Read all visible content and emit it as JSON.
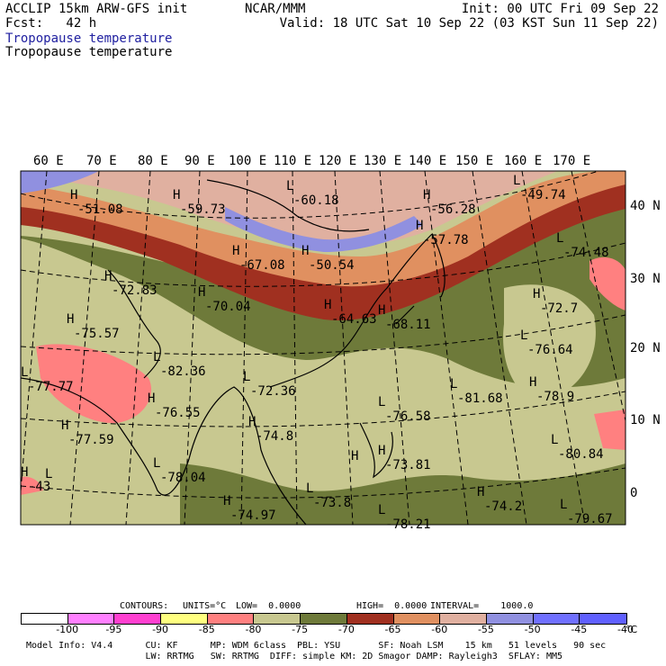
{
  "header": {
    "model_line": "ACCLIP 15km ARW-GFS init",
    "fcst_line": "Fcst:   42 h",
    "center": "NCAR/MMM",
    "init": "Init: 00 UTC Fri 09 Sep 22",
    "valid": "Valid: 18 UTC Sat 10 Sep 22 (03 KST Sun 11 Sep 22)",
    "field_colored": "Tropopause temperature",
    "field_black": "Tropopause temperature"
  },
  "map": {
    "lon_labels": [
      "60 E",
      "70 E",
      "80 E",
      "90 E",
      "100 E",
      "110 E",
      "120 E",
      "130 E",
      "140 E",
      "150 E",
      "160 E",
      "170 E"
    ],
    "lat_labels": [
      "40 N",
      "30 N",
      "20 N",
      "10 N",
      "0"
    ],
    "extrema": [
      {
        "type": "H",
        "value": "-51.08"
      },
      {
        "type": "H",
        "value": "-59.73"
      },
      {
        "type": "L",
        "value": "-60.18"
      },
      {
        "type": "H",
        "value": "-56.28"
      },
      {
        "type": "L",
        "value": "-49.74"
      },
      {
        "type": "H",
        "value": "-67.08"
      },
      {
        "type": "H",
        "value": "-50.54"
      },
      {
        "type": "H",
        "value": "-57.78"
      },
      {
        "type": "L",
        "value": "-74.48"
      },
      {
        "type": "H",
        "value": "-72.83"
      },
      {
        "type": "H",
        "value": "-70.04"
      },
      {
        "type": "H",
        "value": "-64.63"
      },
      {
        "type": "H",
        "value": "-68.11"
      },
      {
        "type": "H",
        "value": "-72.7"
      },
      {
        "type": "H",
        "value": "-75.57"
      },
      {
        "type": "L",
        "value": "-76.64"
      },
      {
        "type": "L",
        "value": "-82.36"
      },
      {
        "type": "L",
        "value": "-77.77"
      },
      {
        "type": "L",
        "value": "-72.36"
      },
      {
        "type": "L",
        "value": "-81.68"
      },
      {
        "type": "H",
        "value": "-78.9"
      },
      {
        "type": "H",
        "value": "-76.55"
      },
      {
        "type": "L",
        "value": "-76.58"
      },
      {
        "type": "H",
        "value": "-77.59"
      },
      {
        "type": "H",
        "value": "-74.8"
      },
      {
        "type": "L",
        "value": "-80.84"
      },
      {
        "type": "H",
        "value": "-73.81"
      },
      {
        "type": "L",
        "value": "-78.04"
      },
      {
        "type": "H",
        "value": "-74.2"
      },
      {
        "type": "L",
        "value": "-79.67"
      },
      {
        "type": "H",
        "value": "-43"
      },
      {
        "type": "L",
        "value": "-73.8"
      },
      {
        "type": "H",
        "value": "-74.97"
      },
      {
        "type": "L",
        "value": "-78.21"
      },
      {
        "type": "H",
        "value": ""
      },
      {
        "type": "L",
        "value": ""
      }
    ]
  },
  "contours": {
    "label": "CONTOURS:",
    "units": "UNITS=°C",
    "low": "LOW=  0.0000",
    "high": "HIGH=  0.0000",
    "interval": "INTERVAL=    1000.0"
  },
  "colorbar": {
    "colors": [
      "#ffffff",
      "#ff80ff",
      "#ff40d0",
      "#ffff80",
      "#ff8080",
      "#c8c890",
      "#6e7a3a",
      "#a03020",
      "#e09060",
      "#e0b0a0",
      "#9090e0",
      "#7070ff",
      "#6060ff"
    ],
    "labels": [
      "-100",
      "-95",
      "-90",
      "-85",
      "-80",
      "-75",
      "-70",
      "-65",
      "-60",
      "-55",
      "-50",
      "-45",
      "-40"
    ],
    "unit": "°C"
  },
  "footer": {
    "line1": "Model Info: V4.4      CU: KF      MP: WDM 6class  PBL: YSU       SF: Noah LSM    15 km   51 levels   90 sec",
    "line2": "                      LW: RRTMG   SW: RRTMG  DIFF: simple KM: 2D Smagor DAMP: Rayleigh3  SFLAY: MM5"
  }
}
